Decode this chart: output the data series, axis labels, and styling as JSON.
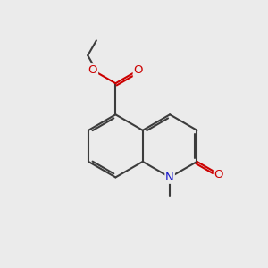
{
  "background_color": "#ebebeb",
  "bond_color": "#3c3c3c",
  "N_color": "#1a1acc",
  "O_color": "#cc0000",
  "font_size": 9.0,
  "line_width": 1.5,
  "figsize": [
    3.0,
    3.0
  ],
  "dpi": 100,
  "xlim": [
    0,
    10
  ],
  "ylim": [
    0,
    10
  ],
  "bl": 1.18
}
